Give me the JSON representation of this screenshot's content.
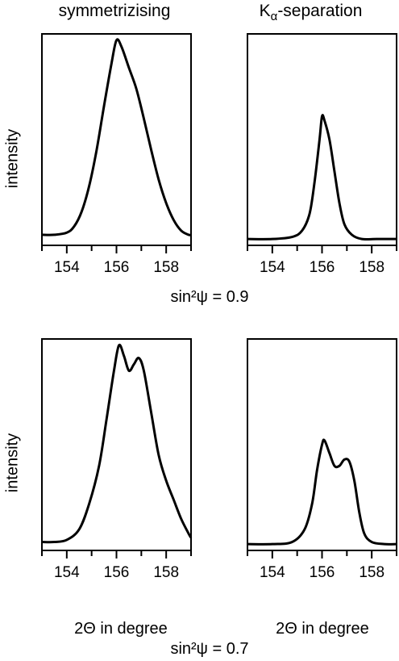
{
  "columns": {
    "left_title": "symmetrizising",
    "right_title_main": "K",
    "right_title_sub": "α",
    "right_title_rest": "-separation"
  },
  "rows": {
    "top_caption": "sin²ψ = 0.9",
    "bottom_caption": "sin²ψ = 0.7"
  },
  "chart_data": [
    {
      "type": "line",
      "name": "symmetrizising, sin²ψ = 0.9",
      "xlabel": "",
      "ylabel": "intensity",
      "xlim": [
        153,
        159
      ],
      "ylim": [
        0,
        1
      ],
      "xticks": [
        154,
        156,
        158
      ],
      "tick_labels": [
        "154",
        "156",
        "158"
      ],
      "x": [
        153.0,
        153.5,
        154.0,
        154.3,
        154.6,
        154.9,
        155.2,
        155.5,
        155.8,
        156.0,
        156.2,
        156.5,
        156.8,
        157.1,
        157.4,
        157.7,
        158.0,
        158.3,
        158.6,
        158.9,
        159.0
      ],
      "y": [
        0.05,
        0.05,
        0.06,
        0.09,
        0.16,
        0.28,
        0.45,
        0.66,
        0.86,
        0.97,
        0.94,
        0.84,
        0.74,
        0.6,
        0.45,
        0.31,
        0.2,
        0.12,
        0.07,
        0.05,
        0.05
      ]
    },
    {
      "type": "line",
      "name": "K-alpha separation, sin²ψ = 0.9",
      "xlabel": "",
      "ylabel": "",
      "xlim": [
        153,
        159
      ],
      "ylim": [
        0,
        1
      ],
      "xticks": [
        154,
        156,
        158
      ],
      "tick_labels": [
        "154",
        "156",
        "158"
      ],
      "x": [
        153.0,
        154.0,
        154.8,
        155.2,
        155.5,
        155.7,
        155.9,
        156.0,
        156.1,
        156.3,
        156.5,
        156.7,
        156.9,
        157.2,
        157.6,
        158.2,
        159.0
      ],
      "y": [
        0.03,
        0.03,
        0.04,
        0.07,
        0.15,
        0.3,
        0.5,
        0.61,
        0.59,
        0.5,
        0.35,
        0.2,
        0.1,
        0.05,
        0.03,
        0.03,
        0.03
      ]
    },
    {
      "type": "line",
      "name": "symmetrizising, sin²ψ = 0.7",
      "xlabel": "2Θ in degree",
      "ylabel": "intensity",
      "xlim": [
        153,
        159
      ],
      "ylim": [
        0,
        1
      ],
      "xticks": [
        154,
        156,
        158
      ],
      "tick_labels": [
        "154",
        "156",
        "158"
      ],
      "x": [
        153.0,
        153.5,
        154.0,
        154.5,
        154.9,
        155.3,
        155.6,
        155.9,
        156.1,
        156.3,
        156.5,
        156.7,
        156.9,
        157.1,
        157.4,
        157.7,
        158.0,
        158.3,
        158.6,
        158.9,
        159.0
      ],
      "y": [
        0.04,
        0.04,
        0.05,
        0.1,
        0.22,
        0.4,
        0.62,
        0.85,
        0.97,
        0.92,
        0.85,
        0.88,
        0.91,
        0.85,
        0.65,
        0.45,
        0.33,
        0.24,
        0.15,
        0.08,
        0.06
      ]
    },
    {
      "type": "line",
      "name": "K-alpha separation, sin²ψ = 0.7",
      "xlabel": "2Θ in degree",
      "ylabel": "",
      "xlim": [
        153,
        159
      ],
      "ylim": [
        0,
        1
      ],
      "xticks": [
        154,
        156,
        158
      ],
      "tick_labels": [
        "154",
        "156",
        "158"
      ],
      "x": [
        153.0,
        154.0,
        154.8,
        155.3,
        155.6,
        155.8,
        156.0,
        156.1,
        156.3,
        156.5,
        156.7,
        156.9,
        157.1,
        157.3,
        157.5,
        157.7,
        158.0,
        158.5,
        159.0
      ],
      "y": [
        0.03,
        0.03,
        0.04,
        0.1,
        0.22,
        0.38,
        0.5,
        0.52,
        0.46,
        0.4,
        0.4,
        0.43,
        0.42,
        0.33,
        0.18,
        0.08,
        0.04,
        0.03,
        0.03
      ]
    }
  ]
}
